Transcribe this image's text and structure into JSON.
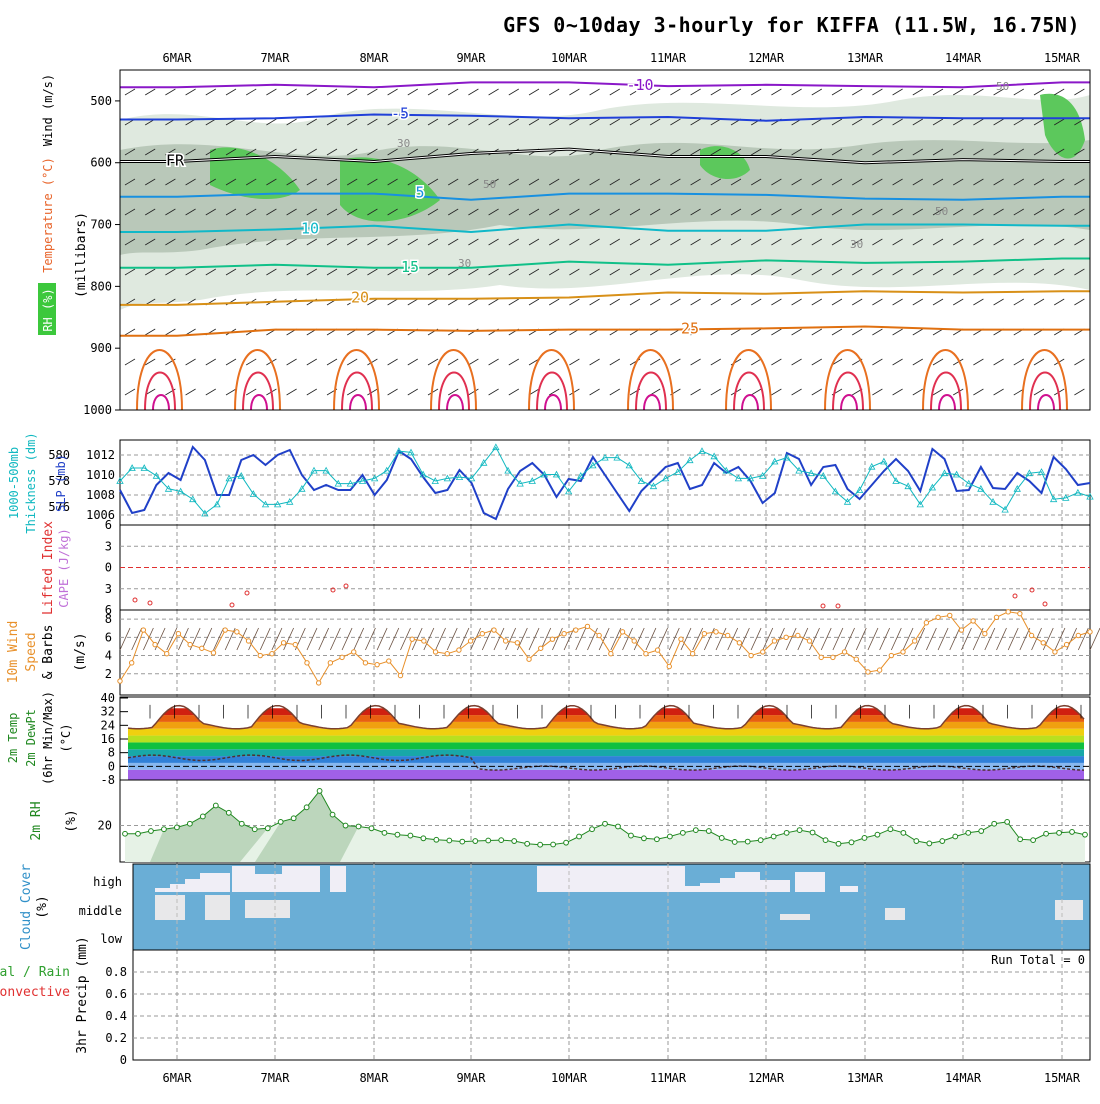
{
  "title": "GFS 0~10day 3-hourly for KIFFA (11.5W, 16.75N)",
  "dates": [
    "6MAR",
    "7MAR",
    "8MAR",
    "9MAR",
    "10MAR",
    "11MAR",
    "12MAR",
    "13MAR",
    "14MAR",
    "15MAR"
  ],
  "chart_data": [
    {
      "type": "heatmap",
      "panel": "cross-section",
      "ylabel_parts": [
        "RH (%)",
        "Temperature (°C)",
        "Wind (m/s)",
        "(millibars)"
      ],
      "ylabel_colors": [
        "#ffffff",
        "#e8642a",
        "#000000",
        "#000000"
      ],
      "yticks": [
        500,
        600,
        700,
        800,
        900,
        1000
      ],
      "ylim": [
        1000,
        450
      ],
      "isotherms": [
        {
          "label": "-10",
          "color": "#8a18c8",
          "p": [
            478,
            474,
            478,
            470,
            470,
            476,
            474,
            476,
            478,
            470
          ]
        },
        {
          "label": "-5",
          "color": "#2040d8",
          "p": [
            530,
            528,
            522,
            524,
            528,
            526,
            532,
            526,
            528,
            528
          ]
        },
        {
          "label": "FR",
          "color": "#000000",
          "p": [
            598,
            590,
            598,
            585,
            578,
            590,
            590,
            600,
            595,
            598
          ]
        },
        {
          "label": "5",
          "color": "#1890e0",
          "p": [
            655,
            650,
            650,
            660,
            650,
            650,
            652,
            658,
            660,
            655
          ]
        },
        {
          "label": "10",
          "color": "#10b8c8",
          "p": [
            712,
            708,
            702,
            712,
            700,
            710,
            710,
            700,
            700,
            702
          ]
        },
        {
          "label": "15",
          "color": "#10c088",
          "p": [
            770,
            765,
            770,
            770,
            760,
            765,
            758,
            762,
            760,
            755
          ]
        },
        {
          "label": "20",
          "color": "#d89018",
          "p": [
            830,
            825,
            820,
            820,
            818,
            810,
            812,
            808,
            810,
            808
          ]
        },
        {
          "label": "25",
          "color": "#e07010",
          "p": [
            880,
            870,
            870,
            872,
            870,
            870,
            868,
            865,
            870,
            870
          ]
        }
      ],
      "rh_labels": [
        "30",
        "50",
        "50",
        "30",
        "30",
        "50"
      ]
    },
    {
      "type": "line",
      "panel": "thickness-slp",
      "ylabel_left": "1000-500mb Thickness (dm)",
      "ylabel_right": "SLP (mb)",
      "yticks_thickness": [
        576,
        578,
        580
      ],
      "yticks_slp": [
        1006,
        1008,
        1010,
        1012
      ],
      "series": [
        {
          "color": "#2040c8",
          "values": [
            1008.5,
            1006.2,
            1006.5,
            1009,
            1010.2,
            1009.5,
            1012.8,
            1011.5,
            1008,
            1008,
            1011.5,
            1012,
            1011,
            1012,
            1012.5,
            1010,
            1008.5,
            1009,
            1008.5,
            1008.5,
            1010,
            1008,
            1009.5,
            1012.4,
            1011.6,
            1009.8,
            1008.2,
            1008.5,
            1010.5,
            1009.2,
            1006.2,
            1005.6,
            1008.6,
            1010.4,
            1011.2,
            1010,
            1007.8,
            1009.6,
            1009.4,
            1011.8,
            1010,
            1008.2,
            1006.4,
            1008.4,
            1009.6,
            1010.8,
            1011.2,
            1008.6,
            1009,
            1011.2,
            1010.2,
            1010.8,
            1009.4,
            1007.2,
            1008.2,
            1012.2,
            1011.6,
            1009,
            1010.8,
            1011,
            1008.6,
            1007.6,
            1009,
            1010.4,
            1011.6,
            1010.4,
            1008.4,
            1012.6,
            1011.6,
            1008.4,
            1008.5,
            1010.8,
            1008.7,
            1008.6,
            1010.2,
            1009.4,
            1008.2,
            1011.8,
            1010.6,
            1009,
            1009.2
          ]
        },
        {
          "color": "#10b8c0",
          "values": [
            578,
            579,
            579,
            578.4,
            577.4,
            577.2,
            576.6,
            575.5,
            576.2,
            578.2,
            578.4,
            577,
            576.2,
            576.2,
            576.4,
            577.4,
            578.8,
            578.8,
            577.8,
            577.8,
            578,
            578.2,
            578.8,
            580.3,
            580.2,
            578.5,
            578,
            578.2,
            578.3,
            578.2,
            579.4,
            580.6,
            578.8,
            577.8,
            578,
            578.5,
            578.5,
            577.2,
            578.4,
            579.2,
            579.8,
            579.8,
            579.2,
            578,
            577.6,
            578.2,
            578.7,
            579.6,
            580.3,
            579.9,
            578.8,
            578.2,
            578.2,
            578.4,
            579.5,
            579.8,
            578.8,
            578.6,
            578.4,
            577.2,
            576.4,
            577.3,
            579.1,
            579.5,
            578,
            577.6,
            576.2,
            577.5,
            578.6,
            578.5,
            577.8,
            577.4,
            576.4,
            575.8,
            577.4,
            578.6,
            578.7,
            576.6,
            576.7,
            577.1,
            576.8
          ]
        }
      ]
    },
    {
      "type": "line",
      "panel": "stability",
      "ylabel_left": "Lifted Index",
      "ylabel_right": "CAPE (J/kg)",
      "yticks": [
        -6,
        -3,
        0,
        3,
        6
      ],
      "ylim": [
        -6,
        6
      ]
    },
    {
      "type": "line",
      "panel": "wind10m",
      "ylabel": "10m Wind Speed & Barbs (m/s)",
      "ylabel_parts": [
        "10m Wind",
        "Speed",
        "& Barbs",
        "(m/s)"
      ],
      "yticks": [
        2,
        4,
        6,
        8
      ],
      "ylim": [
        0,
        9
      ],
      "series": [
        {
          "color": "#e8902a",
          "values": [
            1.2,
            3.2,
            6.8,
            5.2,
            4.2,
            6.4,
            5.2,
            4.8,
            4.3,
            6.8,
            6.6,
            5.6,
            4.0,
            4.2,
            5.4,
            5.2,
            3.2,
            1.0,
            3.2,
            3.8,
            4.4,
            3.2,
            3.0,
            3.4,
            1.8,
            5.8,
            5.6,
            4.4,
            4.2,
            4.6,
            5.6,
            6.4,
            6.8,
            5.6,
            5.4,
            3.6,
            4.8,
            5.8,
            6.4,
            6.8,
            7.2,
            6.2,
            4.2,
            6.6,
            5.6,
            4.2,
            4.6,
            2.8,
            5.8,
            4.2,
            6.4,
            6.6,
            6.2,
            5.4,
            4.0,
            4.4,
            5.6,
            6.0,
            6.2,
            5.6,
            3.8,
            3.8,
            4.4,
            3.6,
            2.2,
            2.4,
            4.0,
            4.4,
            5.6,
            7.6,
            8.2,
            8.4,
            6.8,
            7.8,
            6.4,
            8.2,
            8.8,
            8.6,
            6.2,
            5.4,
            4.4,
            5.2,
            6.2,
            6.6
          ]
        }
      ]
    },
    {
      "type": "area",
      "panel": "temperature",
      "ylabel_parts": [
        "2m Temp",
        "2m DewPt",
        "(6hr Min/Max)",
        "(°C)"
      ],
      "yticks": [
        -8,
        0,
        8,
        16,
        24,
        32,
        40
      ],
      "ylim": [
        -8,
        40
      ],
      "band_colors": [
        "#a060e8",
        "#88b8f0",
        "#3080d8",
        "#18a8a8",
        "#10c040",
        "#b8e020",
        "#f0d010",
        "#f0a010",
        "#e86010",
        "#d02010"
      ],
      "band_edges": [
        -8,
        -2,
        2,
        6,
        10,
        14,
        18,
        22,
        26,
        30,
        34
      ]
    },
    {
      "type": "area",
      "panel": "rh",
      "ylabel": "2m RH",
      "yunit": "(%)",
      "yticks": [
        20
      ],
      "ylim": [
        0,
        45
      ],
      "series": [
        {
          "color": "#208820",
          "values": [
            15.5,
            15.5,
            17,
            18,
            19,
            21,
            25,
            31,
            27,
            21,
            18,
            18.5,
            22,
            24,
            30,
            39,
            26,
            20,
            19.5,
            18.5,
            16,
            15,
            14.5,
            13,
            12.2,
            11.8,
            11.2,
            11.5,
            11.8,
            12,
            11.5,
            10,
            9.5,
            9.6,
            10.6,
            14,
            18,
            21,
            19.5,
            14.5,
            13,
            12.5,
            14,
            16,
            17.5,
            17,
            13.2,
            11,
            11.2,
            12,
            14,
            16,
            17.5,
            16.2,
            12,
            10,
            10.8,
            13.2,
            15,
            18,
            16,
            11.5,
            10.2,
            11.5,
            14,
            16,
            17,
            21,
            22,
            12.5,
            12,
            15.5,
            16,
            16.5,
            15
          ]
        }
      ]
    },
    {
      "type": "heatmap",
      "panel": "cloud",
      "ylabel": "Cloud Cover",
      "yunit": "(%)",
      "levels": [
        "high",
        "middle",
        "low"
      ]
    },
    {
      "type": "bar",
      "panel": "precip",
      "ylabel_left_parts": [
        "Total / Rain",
        "Convective"
      ],
      "ylabel": "3hr Precip (mm)",
      "yticks": [
        "0",
        "0.2",
        "0.4",
        "0.6",
        "0.8"
      ],
      "ylim": [
        0,
        1
      ],
      "annotation": "Run Total = 0"
    }
  ]
}
